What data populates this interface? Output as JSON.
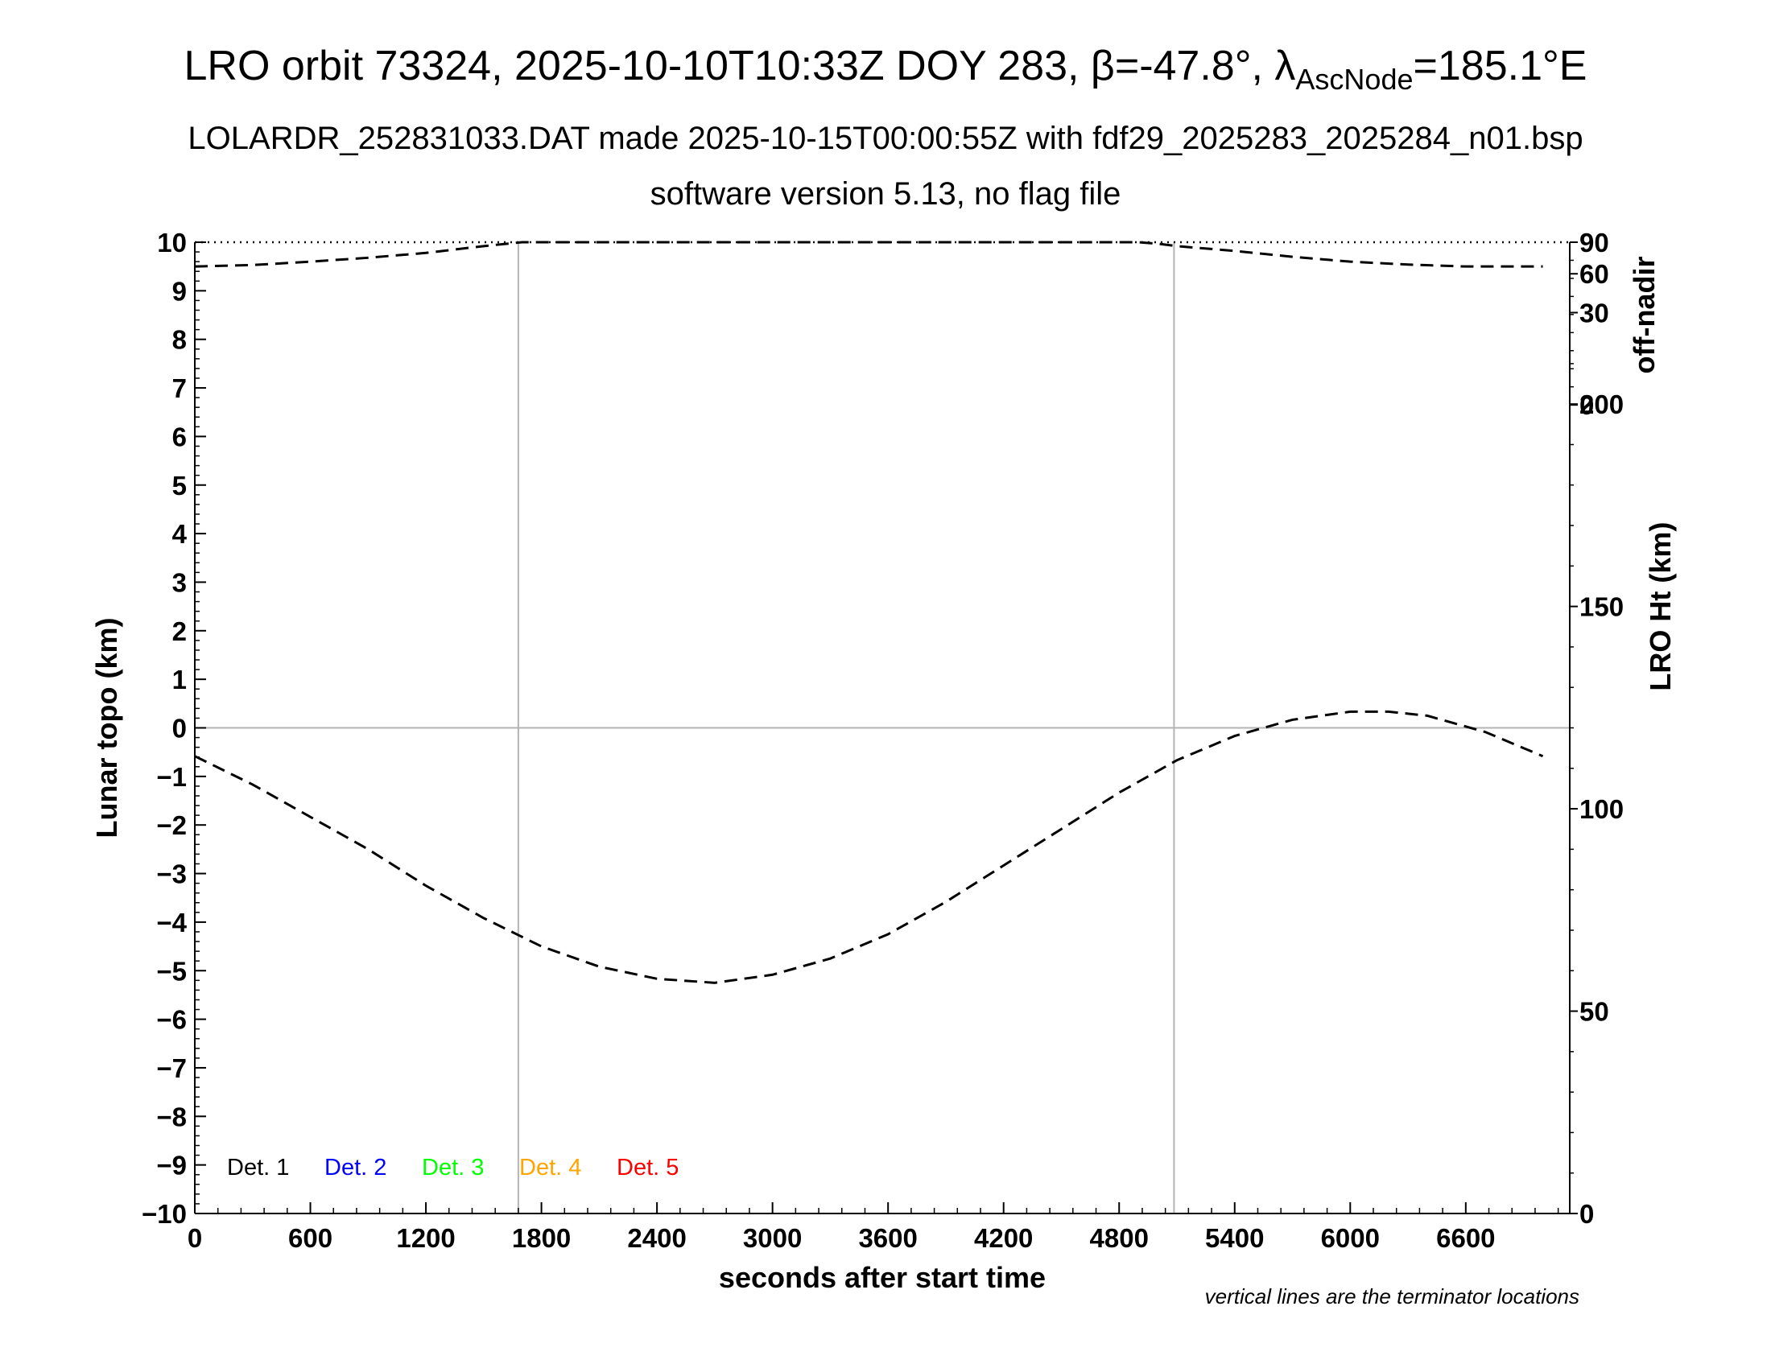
{
  "title": {
    "prefix": "LRO orbit 73324, 2025-10-10T10:33Z DOY 283, β=-47.8°, λ",
    "sub": "AscNode",
    "suffix": "=185.1°E"
  },
  "subtitle1": "LOLARDR_252831033.DAT made 2025-10-15T00:00:55Z with fdf29_2025283_2025284_n01.bsp",
  "subtitle2": "software version 5.13, no flag file",
  "note": "vertical lines are the terminator locations",
  "colors": {
    "det1": "#000000",
    "det2": "#0000ff",
    "det3": "#00ff00",
    "det4": "#ffa500",
    "det5": "#ff0000",
    "grid": "#b4b4b4"
  },
  "chart_data": {
    "type": "line",
    "xlabel": "seconds after start time",
    "xlim": [
      0,
      7140
    ],
    "x_ticks": [
      0,
      600,
      1200,
      1800,
      2400,
      3000,
      3600,
      4200,
      4800,
      5400,
      6000,
      6600
    ],
    "ylabel": "Lunar topo (km)",
    "ylim": [
      -10,
      10
    ],
    "y_ticks": [
      10,
      9,
      8,
      7,
      6,
      5,
      4,
      3,
      2,
      1,
      0,
      -1,
      -2,
      -3,
      -4,
      -5,
      -6,
      -7,
      -8,
      -9,
      -10
    ],
    "y_tick_labels": [
      "10",
      "9",
      "8",
      "7",
      "6",
      "5",
      "4",
      "3",
      "2",
      "1",
      "0",
      "−1",
      "−2",
      "−3",
      "−4",
      "−5",
      "−6",
      "−7",
      "−8",
      "−9",
      "−10"
    ],
    "right_axis_top": {
      "label": "off-nadir",
      "ticks": [
        {
          "label": "90",
          "topo": 10.0
        },
        {
          "label": "60",
          "topo": 9.35
        },
        {
          "label": "30",
          "topo": 8.55
        },
        {
          "label": "0",
          "topo": 6.65
        }
      ]
    },
    "right_axis_bottom": {
      "label": "LRO Ht (km)",
      "lim": [
        0,
        240
      ],
      "ticks": [
        0,
        50,
        100,
        150,
        200
      ]
    },
    "terminators": [
      1680,
      5085
    ],
    "legend": [
      "Det. 1",
      "Det. 2",
      "Det. 3",
      "Det. 4",
      "Det. 5"
    ],
    "series": [
      {
        "axis": "off-nadir",
        "x": [
          0,
          300,
          600,
          900,
          1200,
          1500,
          1600,
          1700,
          4900,
          5000,
          5100,
          5400,
          5700,
          6000,
          6300,
          6600,
          6900,
          7000
        ],
        "y": [
          9.5,
          9.53,
          9.6,
          9.68,
          9.78,
          9.92,
          9.96,
          10.0,
          10.0,
          9.97,
          9.92,
          9.82,
          9.7,
          9.6,
          9.54,
          9.5,
          9.5,
          9.5
        ]
      },
      {
        "axis": "LRO Ht",
        "x": [
          0,
          300,
          600,
          900,
          1200,
          1500,
          1800,
          2100,
          2400,
          2700,
          3000,
          3300,
          3600,
          3900,
          4200,
          4500,
          4800,
          5100,
          5400,
          5700,
          6000,
          6200,
          6400,
          6700,
          7000
        ],
        "y": [
          113,
          106,
          98,
          90,
          81,
          73,
          66,
          61,
          58,
          57,
          59,
          63,
          69,
          77,
          86,
          95,
          104,
          112,
          118,
          122,
          124,
          124,
          123,
          119,
          113
        ]
      }
    ]
  }
}
